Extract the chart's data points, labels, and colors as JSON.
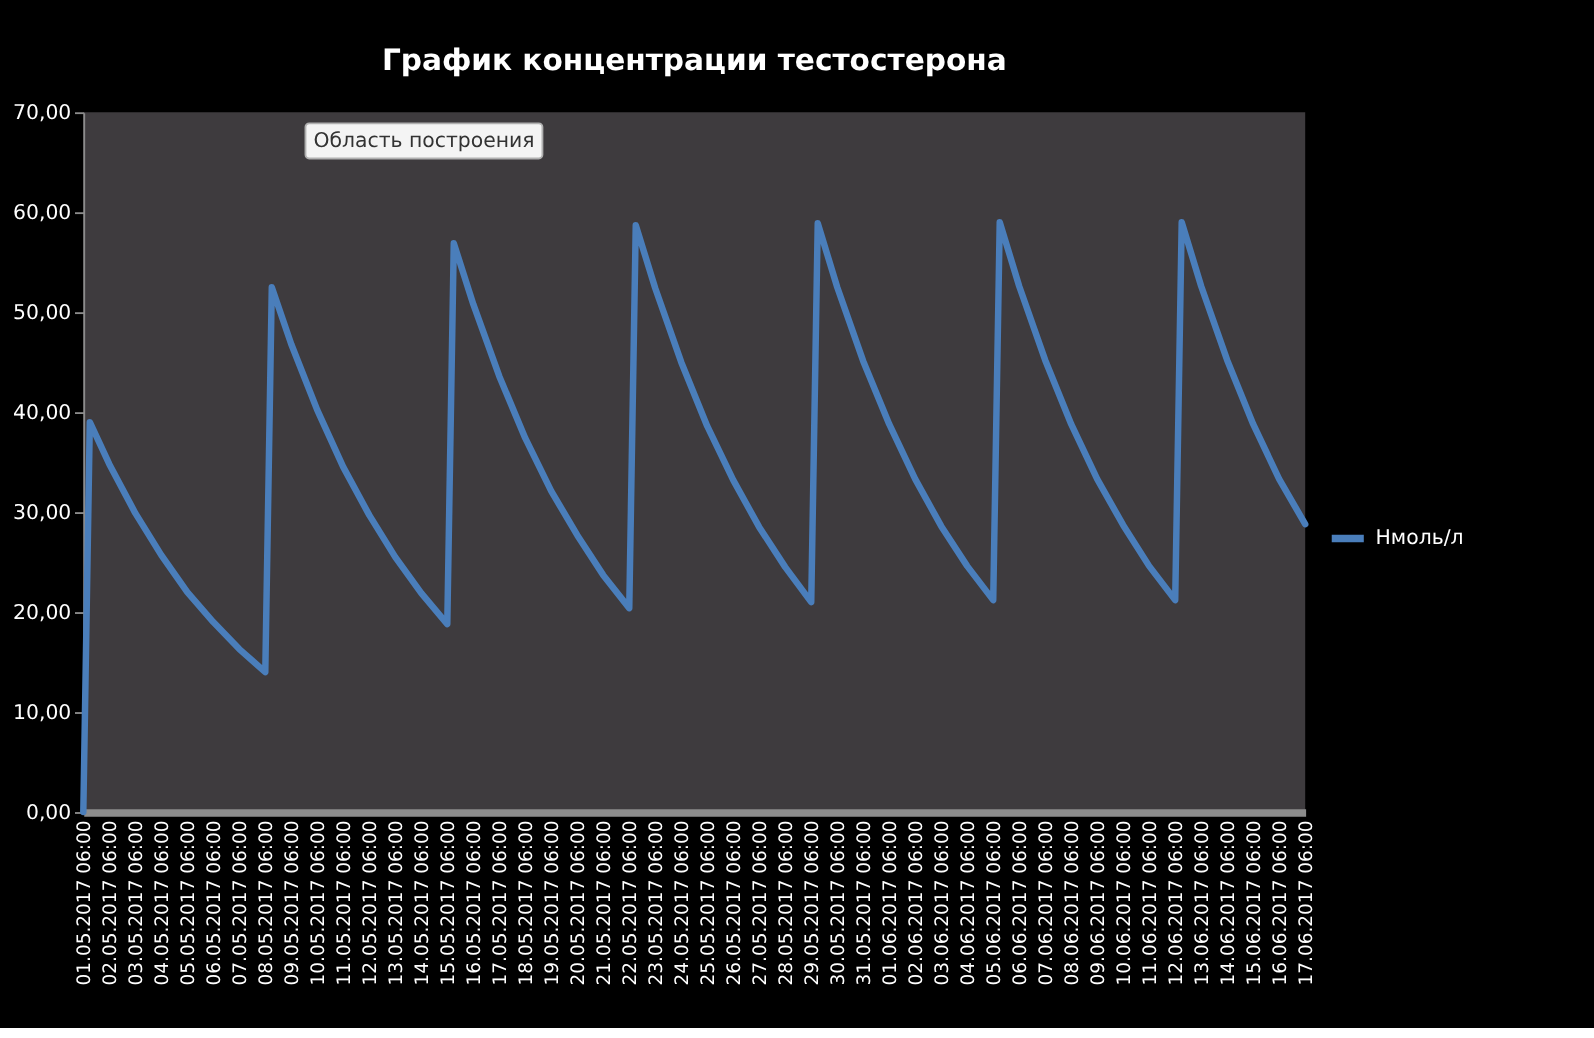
{
  "chart_data": {
    "type": "line",
    "title": "График концентрации тестостерона",
    "annotations": [
      "Область построения"
    ],
    "x": [
      "2017-05-01T06:00",
      "2017-05-01T12:00",
      "2017-05-02T06:00",
      "2017-05-03T06:00",
      "2017-05-04T06:00",
      "2017-05-05T06:00",
      "2017-05-06T06:00",
      "2017-05-07T06:00",
      "2017-05-08T06:00",
      "2017-05-08T12:00",
      "2017-05-09T06:00",
      "2017-05-10T06:00",
      "2017-05-11T06:00",
      "2017-05-12T06:00",
      "2017-05-13T06:00",
      "2017-05-14T06:00",
      "2017-05-15T06:00",
      "2017-05-15T12:00",
      "2017-05-16T06:00",
      "2017-05-17T06:00",
      "2017-05-18T06:00",
      "2017-05-19T06:00",
      "2017-05-20T06:00",
      "2017-05-21T06:00",
      "2017-05-22T06:00",
      "2017-05-22T12:00",
      "2017-05-23T06:00",
      "2017-05-24T06:00",
      "2017-05-25T06:00",
      "2017-05-26T06:00",
      "2017-05-27T06:00",
      "2017-05-28T06:00",
      "2017-05-29T06:00",
      "2017-05-29T12:00",
      "2017-05-30T06:00",
      "2017-05-31T06:00",
      "2017-06-01T06:00",
      "2017-06-02T06:00",
      "2017-06-03T06:00",
      "2017-06-04T06:00",
      "2017-06-05T06:00",
      "2017-06-05T12:00",
      "2017-06-06T06:00",
      "2017-06-07T06:00",
      "2017-06-08T06:00",
      "2017-06-09T06:00",
      "2017-06-10T06:00",
      "2017-06-11T06:00",
      "2017-06-12T06:00",
      "2017-06-12T12:00",
      "2017-06-13T06:00",
      "2017-06-14T06:00",
      "2017-06-15T06:00",
      "2017-06-16T06:00",
      "2017-06-17T06:00"
    ],
    "series": [
      {
        "name": "Нмоль/л",
        "color": "#4a7ebb",
        "values": [
          0,
          39,
          34.8,
          29.9,
          25.7,
          22.0,
          19.0,
          16.3,
          14.0,
          52.5,
          46.8,
          40.2,
          34.5,
          29.7,
          25.5,
          21.9,
          18.8,
          56.9,
          50.8,
          43.6,
          37.4,
          32.1,
          27.7,
          23.7,
          20.4,
          58.7,
          52.4,
          45.0,
          38.6,
          33.2,
          28.5,
          24.5,
          21.0,
          58.9,
          52.5,
          45.1,
          38.8,
          33.3,
          28.6,
          24.6,
          21.2,
          59.0,
          52.6,
          45.2,
          38.8,
          33.3,
          28.7,
          24.6,
          21.2,
          59.0,
          52.6,
          45.2,
          38.8,
          33.3,
          28.8
        ]
      }
    ],
    "xlim": [
      "2017-05-01T06:00",
      "2017-06-17T06:00"
    ],
    "xticks": [
      {
        "value": "2017-05-01T06:00",
        "label": "01.05.2017 06:00"
      },
      {
        "value": "2017-05-02T06:00",
        "label": "02.05.2017 06:00"
      },
      {
        "value": "2017-05-03T06:00",
        "label": "03.05.2017 06:00"
      },
      {
        "value": "2017-05-04T06:00",
        "label": "04.05.2017 06:00"
      },
      {
        "value": "2017-05-05T06:00",
        "label": "05.05.2017 06:00"
      },
      {
        "value": "2017-05-06T06:00",
        "label": "06.05.2017 06:00"
      },
      {
        "value": "2017-05-07T06:00",
        "label": "07.05.2017 06:00"
      },
      {
        "value": "2017-05-08T06:00",
        "label": "08.05.2017 06:00"
      },
      {
        "value": "2017-05-09T06:00",
        "label": "09.05.2017 06:00"
      },
      {
        "value": "2017-05-10T06:00",
        "label": "10.05.2017 06:00"
      },
      {
        "value": "2017-05-11T06:00",
        "label": "11.05.2017 06:00"
      },
      {
        "value": "2017-05-12T06:00",
        "label": "12.05.2017 06:00"
      },
      {
        "value": "2017-05-13T06:00",
        "label": "13.05.2017 06:00"
      },
      {
        "value": "2017-05-14T06:00",
        "label": "14.05.2017 06:00"
      },
      {
        "value": "2017-05-15T06:00",
        "label": "15.05.2017 06:00"
      },
      {
        "value": "2017-05-16T06:00",
        "label": "16.05.2017 06:00"
      },
      {
        "value": "2017-05-17T06:00",
        "label": "17.05.2017 06:00"
      },
      {
        "value": "2017-05-18T06:00",
        "label": "18.05.2017 06:00"
      },
      {
        "value": "2017-05-19T06:00",
        "label": "19.05.2017 06:00"
      },
      {
        "value": "2017-05-20T06:00",
        "label": "20.05.2017 06:00"
      },
      {
        "value": "2017-05-21T06:00",
        "label": "21.05.2017 06:00"
      },
      {
        "value": "2017-05-22T06:00",
        "label": "22.05.2017 06:00"
      },
      {
        "value": "2017-05-23T06:00",
        "label": "23.05.2017 06:00"
      },
      {
        "value": "2017-05-24T06:00",
        "label": "24.05.2017 06:00"
      },
      {
        "value": "2017-05-25T06:00",
        "label": "25.05.2017 06:00"
      },
      {
        "value": "2017-05-26T06:00",
        "label": "26.05.2017 06:00"
      },
      {
        "value": "2017-05-27T06:00",
        "label": "27.05.2017 06:00"
      },
      {
        "value": "2017-05-28T06:00",
        "label": "28.05.2017 06:00"
      },
      {
        "value": "2017-05-29T06:00",
        "label": "29.05.2017 06:00"
      },
      {
        "value": "2017-05-30T06:00",
        "label": "30.05.2017 06:00"
      },
      {
        "value": "2017-05-31T06:00",
        "label": "31.05.2017 06:00"
      },
      {
        "value": "2017-06-01T06:00",
        "label": "01.06.2017 06:00"
      },
      {
        "value": "2017-06-02T06:00",
        "label": "02.06.2017 06:00"
      },
      {
        "value": "2017-06-03T06:00",
        "label": "03.06.2017 06:00"
      },
      {
        "value": "2017-06-04T06:00",
        "label": "04.06.2017 06:00"
      },
      {
        "value": "2017-06-05T06:00",
        "label": "05.06.2017 06:00"
      },
      {
        "value": "2017-06-06T06:00",
        "label": "06.06.2017 06:00"
      },
      {
        "value": "2017-06-07T06:00",
        "label": "07.06.2017 06:00"
      },
      {
        "value": "2017-06-08T06:00",
        "label": "08.06.2017 06:00"
      },
      {
        "value": "2017-06-09T06:00",
        "label": "09.06.2017 06:00"
      },
      {
        "value": "2017-06-10T06:00",
        "label": "10.06.2017 06:00"
      },
      {
        "value": "2017-06-11T06:00",
        "label": "11.06.2017 06:00"
      },
      {
        "value": "2017-06-12T06:00",
        "label": "12.06.2017 06:00"
      },
      {
        "value": "2017-06-13T06:00",
        "label": "13.06.2017 06:00"
      },
      {
        "value": "2017-06-14T06:00",
        "label": "14.06.2017 06:00"
      },
      {
        "value": "2017-06-15T06:00",
        "label": "15.06.2017 06:00"
      },
      {
        "value": "2017-06-16T06:00",
        "label": "16.06.2017 06:00"
      },
      {
        "value": "2017-06-17T06:00",
        "label": "17.06.2017 06:00"
      }
    ],
    "ylim": [
      0,
      70
    ],
    "yticks": [
      {
        "value": 0,
        "label": "0,00"
      },
      {
        "value": 10,
        "label": "10,00"
      },
      {
        "value": 20,
        "label": "20,00"
      },
      {
        "value": 30,
        "label": "30,00"
      },
      {
        "value": 40,
        "label": "40,00"
      },
      {
        "value": 50,
        "label": "50,00"
      },
      {
        "value": 60,
        "label": "60,00"
      },
      {
        "value": 70,
        "label": "70,00"
      }
    ],
    "grid": false,
    "legend": "right",
    "marker": "none",
    "line_style": "solid"
  }
}
